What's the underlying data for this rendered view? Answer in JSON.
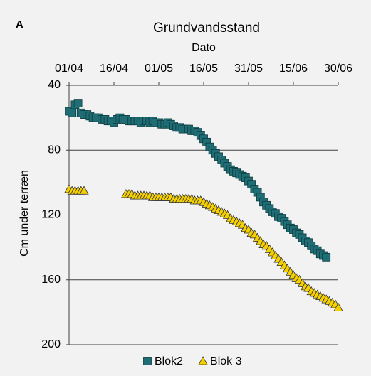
{
  "panel_label": "A",
  "chart_data": {
    "type": "scatter",
    "title": "Grundvandsstand",
    "xlabel": "Dato",
    "ylabel": "Cm under terræn",
    "categories": [
      "01/04",
      "02/04",
      "03/04",
      "04/04",
      "05/04",
      "06/04",
      "07/04",
      "08/04",
      "09/04",
      "10/04",
      "11/04",
      "12/04",
      "13/04",
      "14/04",
      "15/04",
      "16/04",
      "17/04",
      "18/04",
      "19/04",
      "20/04",
      "21/04",
      "22/04",
      "23/04",
      "24/04",
      "25/04",
      "26/04",
      "27/04",
      "28/04",
      "29/04",
      "30/04",
      "01/05",
      "02/05",
      "03/05",
      "04/05",
      "05/05",
      "06/05",
      "07/05",
      "08/05",
      "09/05",
      "10/05",
      "11/05",
      "12/05",
      "13/05",
      "14/05",
      "15/05",
      "16/05",
      "17/05",
      "18/05",
      "19/05",
      "20/05",
      "21/05",
      "22/05",
      "23/05",
      "24/05",
      "25/05",
      "26/05",
      "27/05",
      "28/05",
      "29/05",
      "30/05",
      "31/05",
      "01/06",
      "02/06",
      "03/06",
      "04/06",
      "05/06",
      "06/06",
      "07/06",
      "08/06",
      "09/06",
      "10/06",
      "11/06",
      "12/06",
      "13/06",
      "14/06",
      "15/06",
      "16/06",
      "17/06",
      "18/06",
      "19/06",
      "20/06",
      "21/06",
      "22/06",
      "23/06",
      "24/06",
      "25/06",
      "26/06",
      "27/06",
      "28/06",
      "29/06",
      "30/06"
    ],
    "xticks": [
      "01/04",
      "16/04",
      "01/05",
      "16/05",
      "31/05",
      "15/06",
      "30/06"
    ],
    "ylim": [
      40,
      200
    ],
    "yticks": [
      40,
      80,
      120,
      160,
      200
    ],
    "y_inverted": true,
    "grid": true,
    "legend": "bottom",
    "series": [
      {
        "name": "Blok2",
        "color": "#1f6e75",
        "marker": "square",
        "values": [
          56,
          57,
          52,
          51,
          57,
          58,
          58,
          59,
          60,
          60,
          60,
          61,
          61,
          62,
          62,
          63,
          61,
          60,
          61,
          61,
          62,
          62,
          62,
          62,
          63,
          62,
          62,
          63,
          62,
          63,
          63,
          64,
          64,
          63,
          64,
          65,
          66,
          66,
          67,
          67,
          67,
          68,
          68,
          69,
          71,
          73,
          75,
          78,
          80,
          82,
          84,
          86,
          88,
          90,
          92,
          93,
          94,
          95,
          96,
          97,
          99,
          101,
          104,
          106,
          109,
          112,
          114,
          116,
          118,
          119,
          121,
          122,
          124,
          126,
          128,
          129,
          131,
          132,
          134,
          136,
          137,
          139,
          141,
          142,
          144,
          145,
          146,
          null,
          null,
          null,
          null
        ]
      },
      {
        "name": "Blok 3",
        "color": "#f5d000",
        "marker": "triangle",
        "values": [
          104,
          105,
          105,
          105,
          105,
          105,
          null,
          null,
          null,
          null,
          null,
          null,
          null,
          null,
          null,
          null,
          null,
          null,
          null,
          107,
          107,
          107,
          108,
          108,
          108,
          108,
          108,
          108,
          109,
          109,
          109,
          109,
          109,
          109,
          109,
          110,
          110,
          110,
          110,
          110,
          110,
          110,
          111,
          111,
          111,
          112,
          113,
          114,
          115,
          116,
          117,
          118,
          119,
          120,
          122,
          123,
          124,
          125,
          126,
          128,
          129,
          131,
          132,
          134,
          136,
          138,
          139,
          141,
          143,
          145,
          147,
          149,
          151,
          153,
          155,
          157,
          159,
          160,
          162,
          164,
          165,
          167,
          168,
          169,
          170,
          171,
          172,
          173,
          174,
          175,
          177
        ]
      }
    ]
  }
}
